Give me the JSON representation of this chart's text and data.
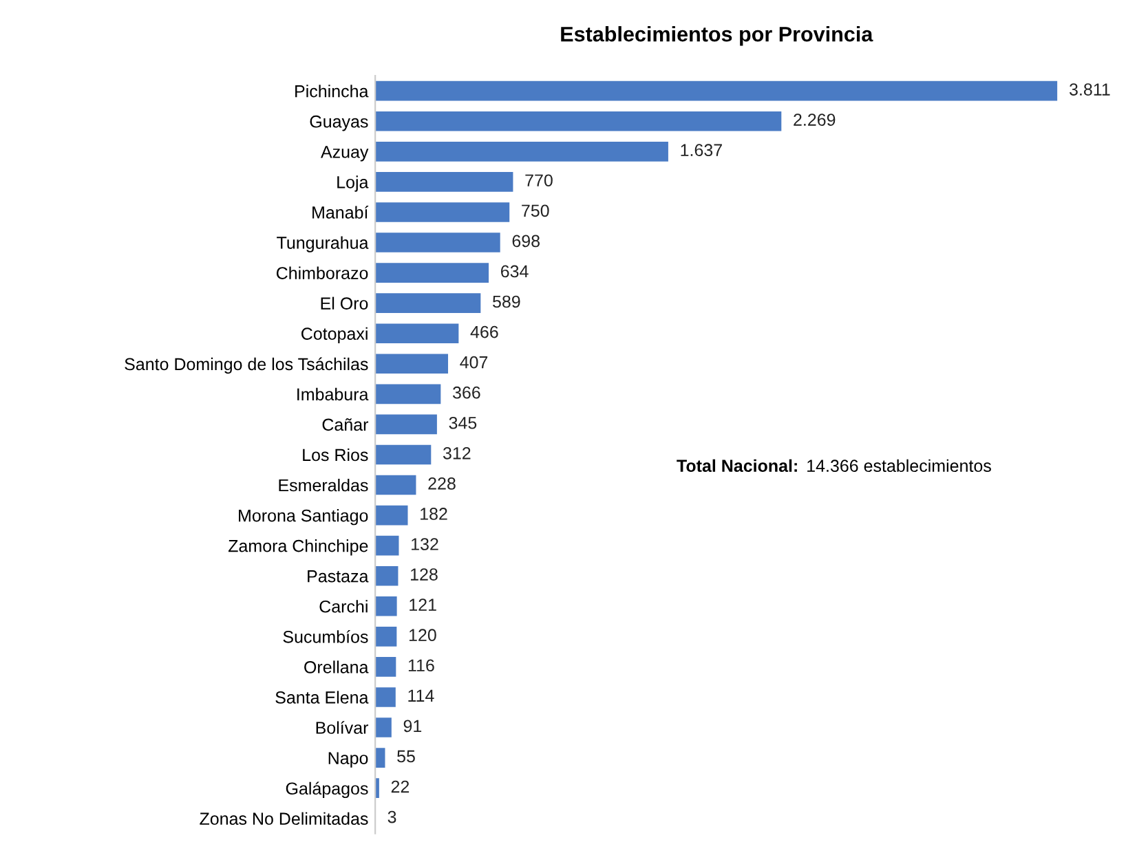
{
  "chart_data": {
    "type": "bar",
    "orientation": "horizontal",
    "title": "Establecimientos por Provincia",
    "categories": [
      "Pichincha",
      "Guayas",
      "Azuay",
      "Loja",
      "Manabí",
      "Tungurahua",
      "Chimborazo",
      "El Oro",
      "Cotopaxi",
      "Santo Domingo de los Tsáchilas",
      "Imbabura",
      "Cañar",
      "Los Rios",
      "Esmeraldas",
      "Morona Santiago",
      "Zamora Chinchipe",
      "Pastaza",
      "Carchi",
      "Sucumbíos",
      "Orellana",
      "Santa Elena",
      "Bolívar",
      "Napo",
      "Galápagos",
      "Zonas No Delimitadas"
    ],
    "values": [
      3811,
      2269,
      1637,
      770,
      750,
      698,
      634,
      589,
      466,
      407,
      366,
      345,
      312,
      228,
      182,
      132,
      128,
      121,
      120,
      116,
      114,
      91,
      55,
      22,
      3
    ],
    "value_labels": [
      "3.811",
      "2.269",
      "1.637",
      "770",
      "750",
      "698",
      "634",
      "589",
      "466",
      "407",
      "366",
      "345",
      "312",
      "228",
      "182",
      "132",
      "128",
      "121",
      "120",
      "116",
      "114",
      "91",
      "55",
      "22",
      "3"
    ],
    "color": "#4a7bc4",
    "annotations": [
      "Total Nacional:",
      "14.366 establecimientos"
    ]
  }
}
